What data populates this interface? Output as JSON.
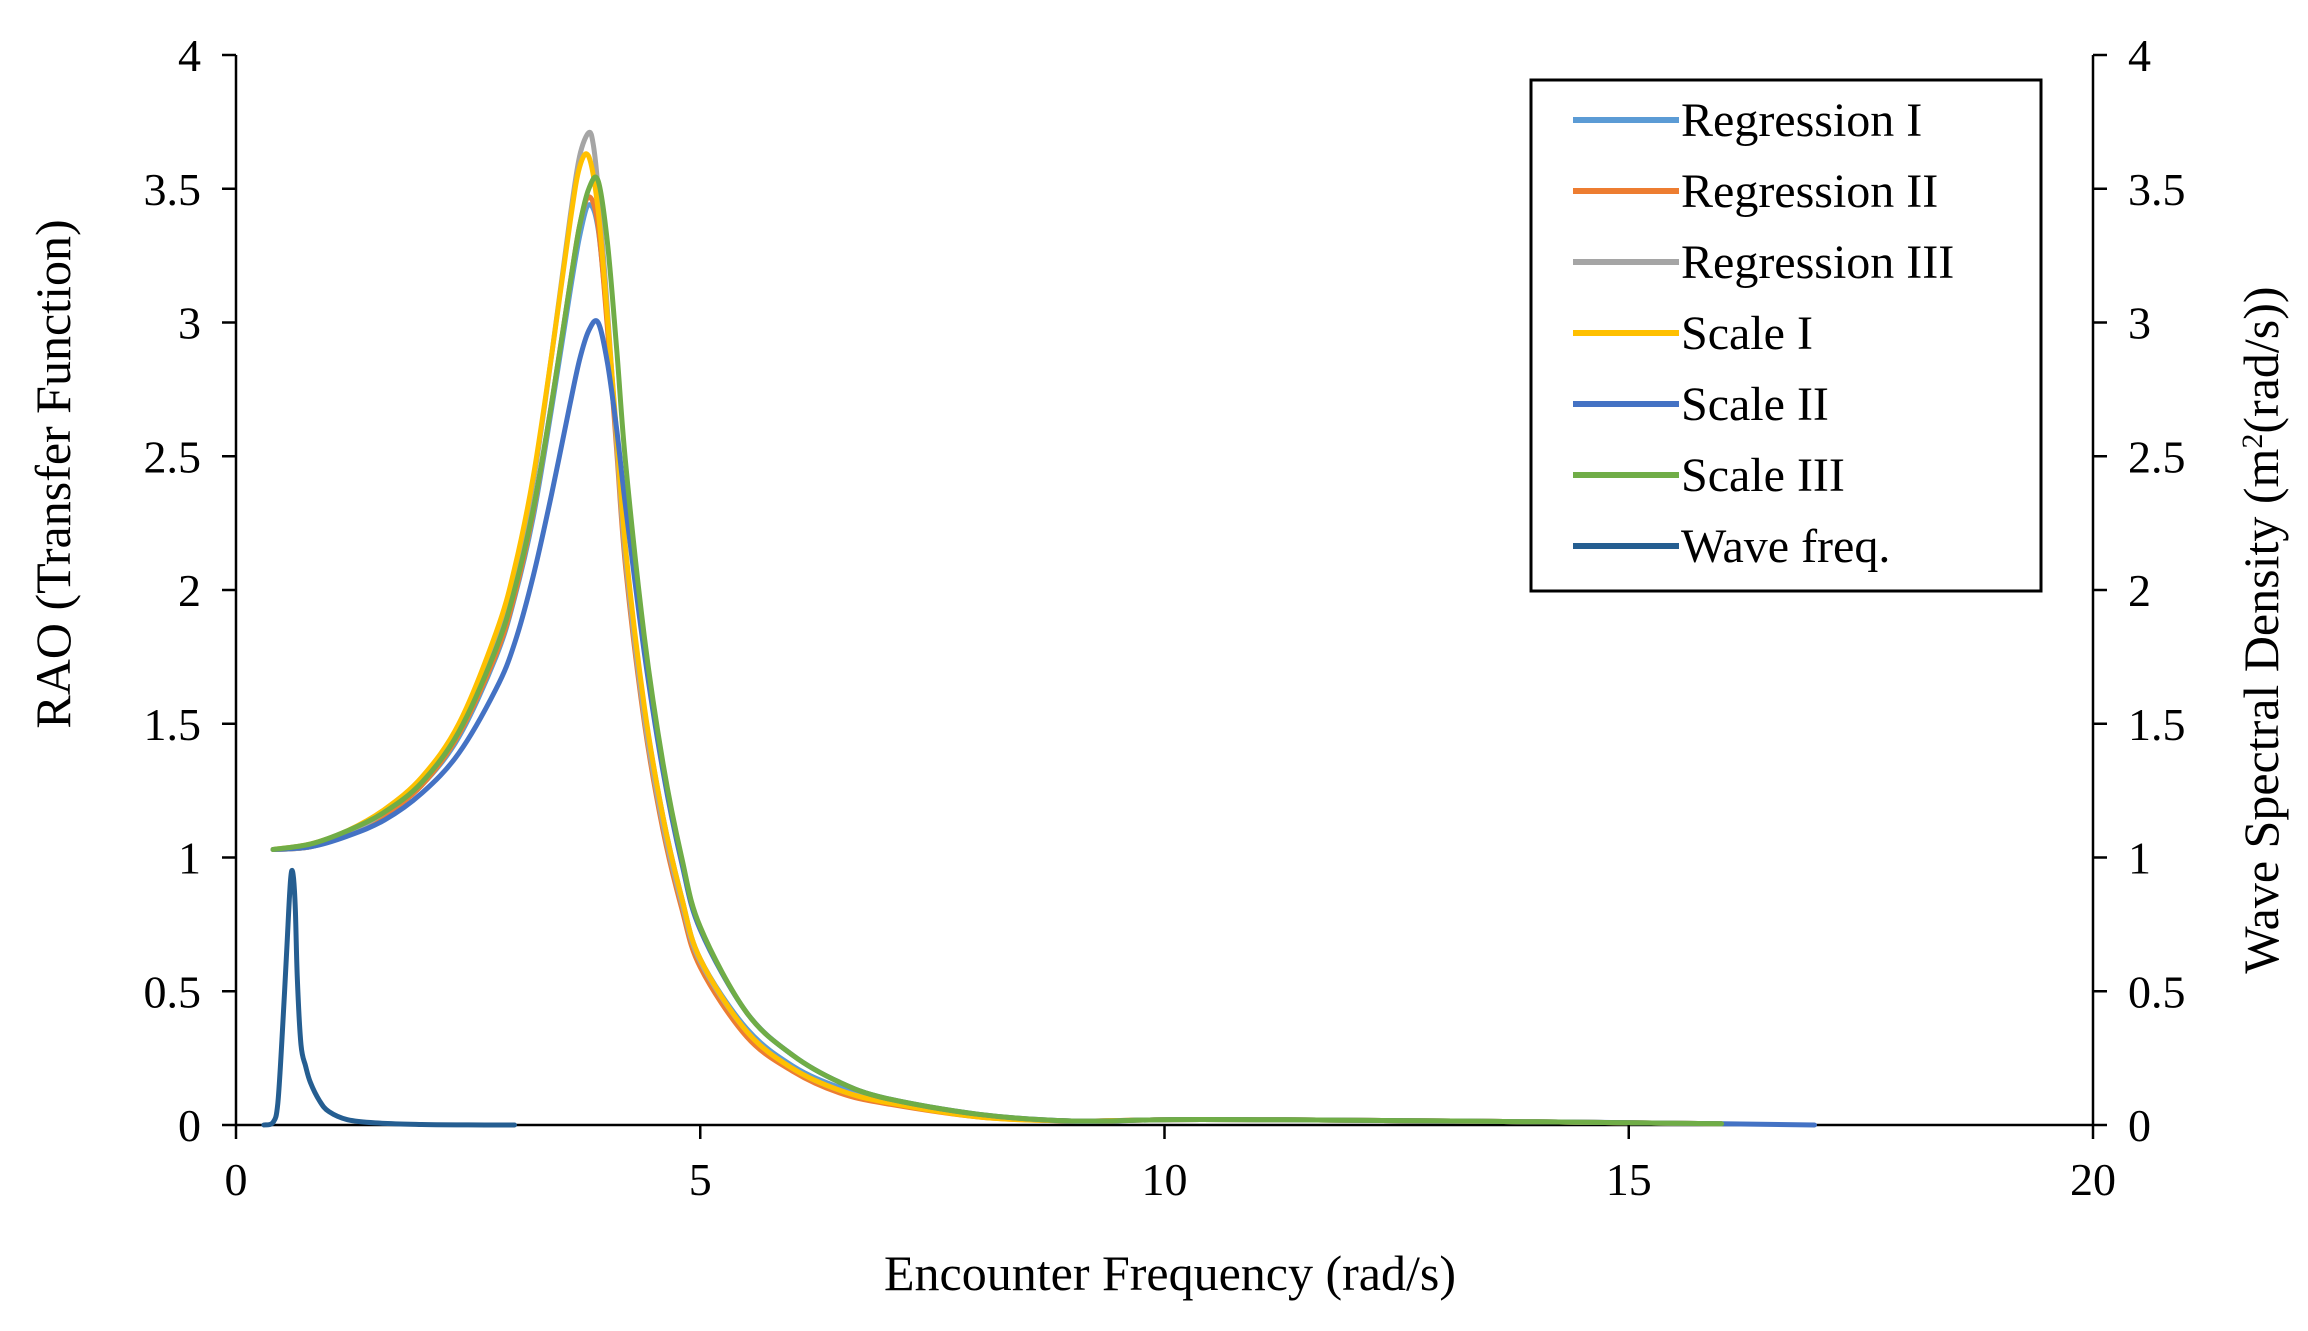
{
  "chart_data": {
    "type": "line",
    "title": "",
    "xlabel": "Encounter Frequency (rad/s)",
    "ylabel": "RAO (Transfer Function)",
    "y2label": {
      "prefix": "Wave Spectral Density (m",
      "superscript": "2",
      "suffix": "(rad/s))"
    },
    "xlim": [
      0,
      20
    ],
    "ylim": [
      0,
      4
    ],
    "y2lim": [
      0,
      4
    ],
    "x_ticks": [
      0,
      5,
      10,
      15,
      20
    ],
    "x_tick_labels": [
      "0",
      "5",
      "10",
      "15",
      "20"
    ],
    "y_ticks": [
      0,
      0.5,
      1,
      1.5,
      2,
      2.5,
      3,
      3.5,
      4
    ],
    "y_tick_labels": [
      "0",
      "0.5",
      "1",
      "1.5",
      "2",
      "2.5",
      "3",
      "3.5",
      "4"
    ],
    "y2_ticks": [
      0,
      0.5,
      1,
      1.5,
      2,
      2.5,
      3,
      3.5,
      4
    ],
    "y2_tick_labels": [
      "0",
      "0.5",
      "1",
      "1.5",
      "2",
      "2.5",
      "3",
      "3.5",
      "4"
    ],
    "grid": false,
    "legend_position": "top-right",
    "series": [
      {
        "name": "Regression I",
        "color": "#5b9bd5",
        "x": [
          0.4,
          0.8,
          1.2,
          1.6,
          2.0,
          2.4,
          2.8,
          3.0,
          3.2,
          3.4,
          3.6,
          3.7,
          3.8,
          3.9,
          4.0,
          4.1,
          4.2,
          4.4,
          4.6,
          4.8,
          5.0,
          5.5,
          6.0,
          6.5,
          7.0,
          8.0,
          9.0,
          10.0,
          11.0,
          12.0,
          14.0,
          16.0
        ],
        "values": [
          1.03,
          1.04,
          1.09,
          1.16,
          1.27,
          1.45,
          1.75,
          1.97,
          2.27,
          2.68,
          3.12,
          3.32,
          3.44,
          3.35,
          3.0,
          2.55,
          2.1,
          1.55,
          1.15,
          0.85,
          0.62,
          0.36,
          0.22,
          0.14,
          0.09,
          0.035,
          0.015,
          0.02,
          0.02,
          0.018,
          0.012,
          0.005
        ]
      },
      {
        "name": "Regression II",
        "color": "#ed7d31",
        "x": [
          0.4,
          0.8,
          1.2,
          1.6,
          2.0,
          2.4,
          2.8,
          3.0,
          3.2,
          3.4,
          3.6,
          3.7,
          3.8,
          3.9,
          4.0,
          4.1,
          4.2,
          4.4,
          4.6,
          4.8,
          5.0,
          5.5,
          6.0,
          6.5,
          7.0,
          8.0,
          9.0,
          10.0,
          11.0,
          12.0,
          14.0,
          16.0
        ],
        "values": [
          1.03,
          1.04,
          1.09,
          1.16,
          1.27,
          1.46,
          1.76,
          1.98,
          2.29,
          2.7,
          3.15,
          3.36,
          3.47,
          3.36,
          2.98,
          2.52,
          2.07,
          1.5,
          1.1,
          0.81,
          0.59,
          0.33,
          0.2,
          0.12,
          0.08,
          0.03,
          0.015,
          0.02,
          0.02,
          0.018,
          0.012,
          0.005
        ]
      },
      {
        "name": "Regression III",
        "color": "#a5a5a5",
        "x": [
          0.4,
          0.8,
          1.2,
          1.6,
          2.0,
          2.4,
          2.8,
          3.0,
          3.2,
          3.4,
          3.6,
          3.7,
          3.8,
          3.85,
          3.9,
          4.0,
          4.1,
          4.2,
          4.4,
          4.6,
          4.8,
          5.0,
          5.5,
          6.0,
          6.5,
          7.0,
          8.0,
          9.0,
          10.0,
          11.0,
          12.0,
          14.0,
          16.0
        ],
        "values": [
          1.03,
          1.04,
          1.09,
          1.17,
          1.29,
          1.49,
          1.82,
          2.06,
          2.4,
          2.88,
          3.4,
          3.62,
          3.71,
          3.66,
          3.5,
          3.05,
          2.55,
          2.1,
          1.52,
          1.12,
          0.83,
          0.61,
          0.35,
          0.21,
          0.13,
          0.09,
          0.035,
          0.015,
          0.02,
          0.02,
          0.018,
          0.012,
          0.005
        ]
      },
      {
        "name": "Scale I",
        "color": "#ffc000",
        "x": [
          0.4,
          0.8,
          1.2,
          1.6,
          2.0,
          2.4,
          2.8,
          3.0,
          3.2,
          3.4,
          3.6,
          3.7,
          3.8,
          3.9,
          4.0,
          4.1,
          4.2,
          4.4,
          4.6,
          4.8,
          5.0,
          5.5,
          6.0,
          6.5,
          7.0,
          8.0,
          9.0,
          10.0,
          11.0,
          12.0,
          14.0,
          16.0
        ],
        "values": [
          1.03,
          1.05,
          1.1,
          1.18,
          1.3,
          1.5,
          1.84,
          2.08,
          2.42,
          2.88,
          3.38,
          3.58,
          3.62,
          3.42,
          3.02,
          2.58,
          2.14,
          1.56,
          1.15,
          0.85,
          0.62,
          0.35,
          0.21,
          0.13,
          0.085,
          0.03,
          0.015,
          0.02,
          0.02,
          0.018,
          0.012,
          0.005
        ]
      },
      {
        "name": "Scale II",
        "color": "#4472c4",
        "x": [
          0.4,
          0.8,
          1.2,
          1.6,
          2.0,
          2.4,
          2.8,
          3.0,
          3.2,
          3.4,
          3.6,
          3.7,
          3.8,
          3.9,
          4.0,
          4.1,
          4.2,
          4.4,
          4.6,
          4.8,
          5.0,
          5.5,
          6.0,
          6.5,
          7.0,
          8.0,
          9.0,
          10.0,
          11.0,
          12.0,
          14.0,
          16.0,
          17.0
        ],
        "values": [
          1.03,
          1.04,
          1.08,
          1.14,
          1.24,
          1.39,
          1.63,
          1.8,
          2.05,
          2.36,
          2.7,
          2.86,
          2.97,
          3.0,
          2.85,
          2.6,
          2.3,
          1.76,
          1.32,
          0.98,
          0.73,
          0.42,
          0.26,
          0.16,
          0.1,
          0.04,
          0.015,
          0.02,
          0.02,
          0.018,
          0.012,
          0.005,
          0.0
        ]
      },
      {
        "name": "Scale III",
        "color": "#70ad47",
        "x": [
          0.4,
          0.8,
          1.2,
          1.6,
          2.0,
          2.4,
          2.8,
          3.0,
          3.2,
          3.4,
          3.6,
          3.7,
          3.8,
          3.9,
          4.0,
          4.1,
          4.2,
          4.4,
          4.6,
          4.8,
          5.0,
          5.5,
          6.0,
          6.5,
          7.0,
          8.0,
          9.0,
          10.0,
          11.0,
          12.0,
          14.0,
          16.0
        ],
        "values": [
          1.03,
          1.05,
          1.1,
          1.17,
          1.28,
          1.47,
          1.78,
          2.0,
          2.3,
          2.7,
          3.15,
          3.36,
          3.5,
          3.53,
          3.3,
          2.9,
          2.46,
          1.82,
          1.35,
          1.0,
          0.74,
          0.42,
          0.26,
          0.16,
          0.1,
          0.04,
          0.015,
          0.02,
          0.02,
          0.018,
          0.012,
          0.005
        ]
      },
      {
        "name": "Wave freq.",
        "color": "#255e91",
        "axis": "secondary",
        "x": [
          0.3,
          0.4,
          0.45,
          0.5,
          0.55,
          0.58,
          0.6,
          0.62,
          0.64,
          0.66,
          0.7,
          0.75,
          0.8,
          0.9,
          1.0,
          1.2,
          1.5,
          2.0,
          2.5,
          3.0
        ],
        "values": [
          0.0,
          0.01,
          0.08,
          0.35,
          0.68,
          0.88,
          0.95,
          0.92,
          0.8,
          0.55,
          0.3,
          0.22,
          0.16,
          0.09,
          0.05,
          0.02,
          0.008,
          0.002,
          0.0005,
          0.0
        ]
      }
    ]
  }
}
